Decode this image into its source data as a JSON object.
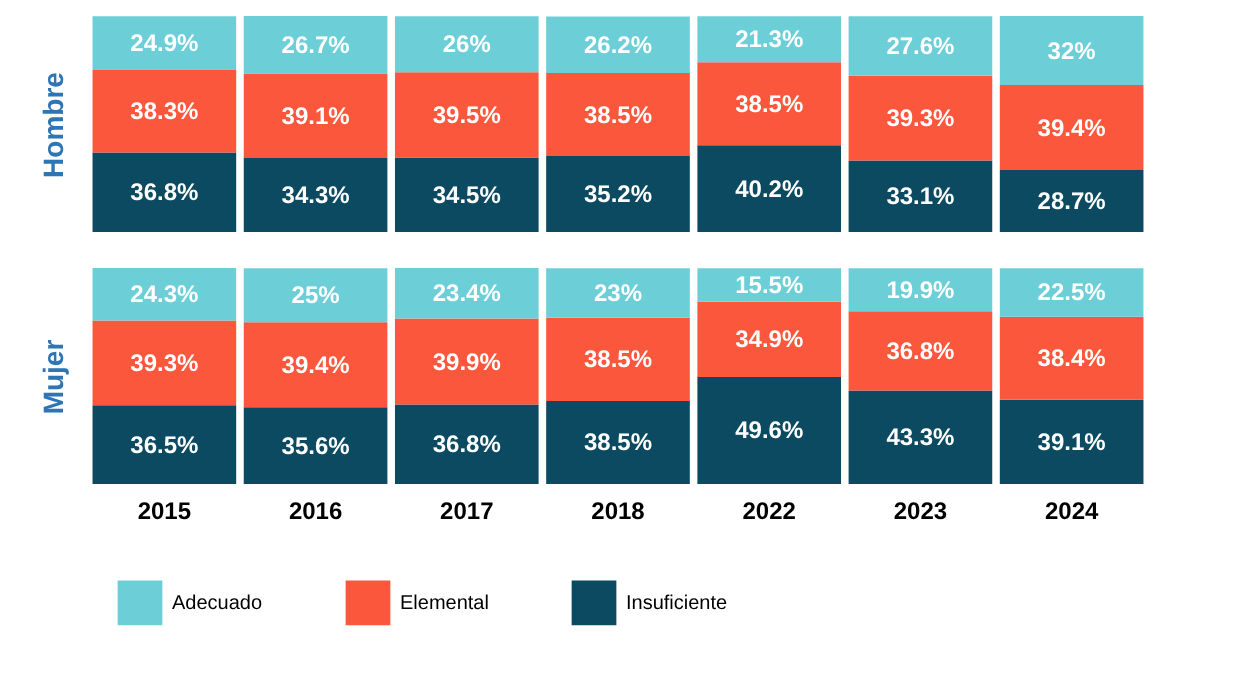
{
  "chart_data": [
    {
      "type": "bar",
      "stacked": true,
      "ylabel": "Hombre",
      "categories": [
        "2015",
        "2016",
        "2017",
        "2018",
        "2022",
        "2023",
        "2024"
      ],
      "tick_labels": false,
      "legend": "bottom",
      "data_labels": true,
      "series": [
        {
          "name": "Insuficiente",
          "color": "#0b4a60",
          "values": [
            36.8,
            34.3,
            34.5,
            35.2,
            40.2,
            33.1,
            28.7
          ],
          "value_labels": [
            "36.8%",
            "34.3%",
            "34.5%",
            "35.2%",
            "40.2%",
            "33.1%",
            "28.7%"
          ]
        },
        {
          "name": "Elemental",
          "color": "#fa573c",
          "values": [
            38.3,
            39.1,
            39.5,
            38.5,
            38.5,
            39.3,
            39.4
          ],
          "value_labels": [
            "38.3%",
            "39.1%",
            "39.5%",
            "38.5%",
            "38.5%",
            "39.3%",
            "39.4%"
          ]
        },
        {
          "name": "Adecuado",
          "color": "#6ccfd8",
          "values": [
            24.9,
            26.7,
            26,
            26.2,
            21.3,
            27.6,
            32
          ],
          "value_labels": [
            "24.9%",
            "26.7%",
            "26%",
            "26.2%",
            "21.3%",
            "27.6%",
            "32%"
          ]
        }
      ]
    },
    {
      "type": "bar",
      "stacked": true,
      "ylabel": "Mujer",
      "categories": [
        "2015",
        "2016",
        "2017",
        "2018",
        "2022",
        "2023",
        "2024"
      ],
      "tick_labels": "x",
      "legend": "bottom",
      "data_labels": true,
      "series": [
        {
          "name": "Insuficiente",
          "color": "#0b4a60",
          "values": [
            36.5,
            35.6,
            36.8,
            38.5,
            49.6,
            43.3,
            39.1
          ],
          "value_labels": [
            "36.5%",
            "35.6%",
            "36.8%",
            "38.5%",
            "49.6%",
            "43.3%",
            "39.1%"
          ]
        },
        {
          "name": "Elemental",
          "color": "#fa573c",
          "values": [
            39.3,
            39.4,
            39.9,
            38.5,
            34.9,
            36.8,
            38.4
          ],
          "value_labels": [
            "39.3%",
            "39.4%",
            "39.9%",
            "38.5%",
            "34.9%",
            "36.8%",
            "38.4%"
          ]
        },
        {
          "name": "Adecuado",
          "color": "#6ccfd8",
          "values": [
            24.3,
            25,
            23.4,
            23,
            15.5,
            19.9,
            22.5
          ],
          "value_labels": [
            "24.3%",
            "25%",
            "23.4%",
            "23%",
            "15.5%",
            "19.9%",
            "22.5%"
          ]
        }
      ]
    }
  ]
}
